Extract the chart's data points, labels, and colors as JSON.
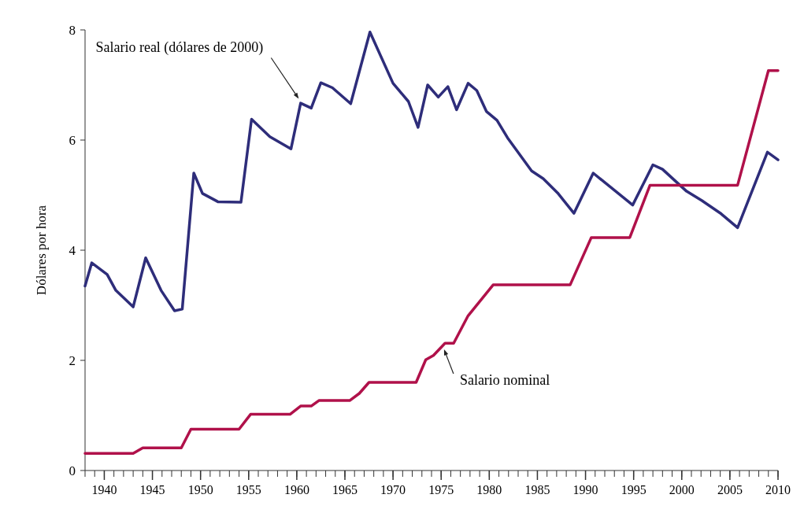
{
  "chart_data": {
    "type": "line",
    "ylabel": "Dólares por hora",
    "xlim": [
      1938,
      2010
    ],
    "xticks": [
      1940,
      1945,
      1950,
      1955,
      1960,
      1965,
      1970,
      1975,
      1980,
      1985,
      1990,
      1995,
      2000,
      2005,
      2010
    ],
    "ylim": [
      0,
      8
    ],
    "yticks": [
      0,
      2,
      4,
      6,
      8
    ],
    "line_style": "solid",
    "marker": "none",
    "series": [
      {
        "color": "#2e2d7a",
        "x": [
          1938,
          1938.7,
          1940.3,
          1941.2,
          1943,
          1944.3,
          1945.9,
          1947.3,
          1948.1,
          1949.3,
          1950.2,
          1951.8,
          1954.2,
          1955.3,
          1957.2,
          1959.4,
          1960.4,
          1961.5,
          1962.5,
          1963.7,
          1965.6,
          1967.6,
          1970,
          1971.6,
          1972.6,
          1973.6,
          1974.7,
          1975.7,
          1976.6,
          1977.8,
          1978.7,
          1979.7,
          1980.8,
          1981.9,
          1984.4,
          1985.6,
          1987.1,
          1988.8,
          1990.8,
          1994.9,
          1997,
          1998,
          2000.5,
          2002.1,
          2004.1,
          2005.8,
          2008.9,
          2010
        ],
        "values": [
          3.35,
          3.77,
          3.56,
          3.27,
          2.97,
          3.86,
          3.27,
          2.9,
          2.93,
          5.4,
          5.03,
          4.88,
          4.87,
          6.38,
          6.06,
          5.84,
          6.67,
          6.58,
          7.04,
          6.95,
          6.66,
          7.96,
          7.03,
          6.7,
          6.23,
          7.0,
          6.78,
          6.97,
          6.55,
          7.03,
          6.9,
          6.52,
          6.36,
          6.04,
          5.44,
          5.3,
          5.04,
          4.67,
          5.4,
          4.82,
          5.55,
          5.47,
          5.07,
          4.9,
          4.66,
          4.41,
          5.78,
          5.64
        ]
      },
      {
        "color": "#b0114a",
        "x": [
          1938,
          1943,
          1944,
          1948,
          1949,
          1954,
          1955.2,
          1959.3,
          1960.4,
          1961.5,
          1962.3,
          1965.5,
          1966.5,
          1967.5,
          1972.4,
          1973.4,
          1974.2,
          1975.4,
          1976.3,
          1977.8,
          1980.4,
          1988.4,
          1990.6,
          1994.6,
          1996.7,
          2005.8,
          2009,
          2010
        ],
        "values": [
          0.31,
          0.31,
          0.41,
          0.41,
          0.75,
          0.75,
          1.02,
          1.02,
          1.17,
          1.17,
          1.27,
          1.27,
          1.4,
          1.6,
          1.6,
          2.01,
          2.09,
          2.31,
          2.31,
          2.81,
          3.37,
          3.37,
          4.23,
          4.23,
          5.18,
          5.18,
          7.26,
          7.26
        ]
      }
    ],
    "annotations": [
      {
        "text": "Salario real (dólares de 2000)",
        "x": 1960.2,
        "y": 6.75
      },
      {
        "text": "Salario nominal",
        "x": 1975.3,
        "y": 2.2
      }
    ]
  }
}
